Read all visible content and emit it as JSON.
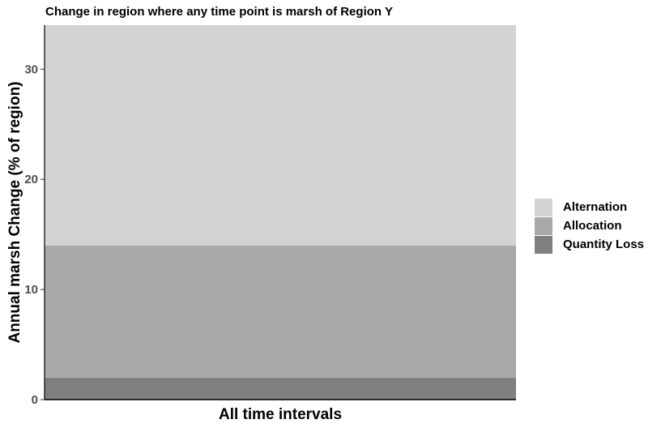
{
  "chart_data": {
    "type": "bar",
    "stacked": true,
    "title": "Change in region where any time point is marsh of Region Y",
    "xlabel": "All time intervals",
    "ylabel": "Annual marsh Change (% of region)",
    "categories": [
      ""
    ],
    "ylim": [
      0,
      34
    ],
    "yticks": [
      0,
      10,
      20,
      30
    ],
    "grid": false,
    "legend_position": "right",
    "series": [
      {
        "name": "Quantity Loss",
        "values": [
          2
        ],
        "color": "#808080"
      },
      {
        "name": "Allocation",
        "values": [
          12
        ],
        "color": "#a9a9a9"
      },
      {
        "name": "Alternation",
        "values": [
          20
        ],
        "color": "#d3d3d3"
      }
    ],
    "legend_order": [
      "Alternation",
      "Allocation",
      "Quantity Loss"
    ]
  }
}
